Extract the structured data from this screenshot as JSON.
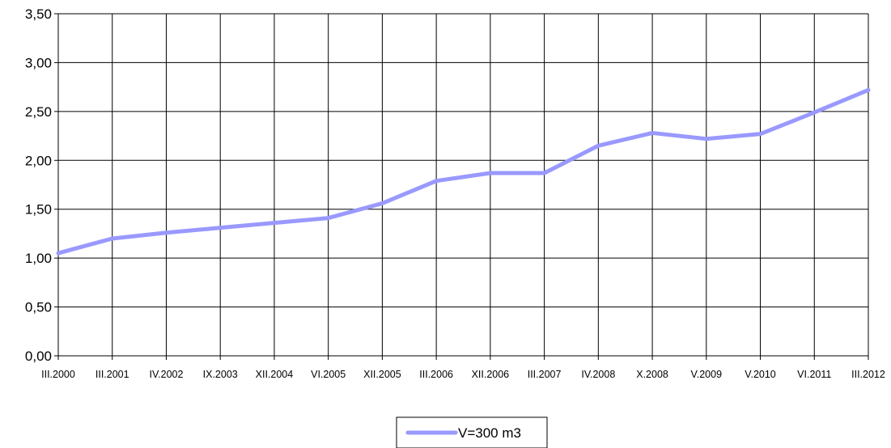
{
  "chart_data": {
    "type": "line",
    "title": "",
    "xlabel": "",
    "ylabel": "",
    "categories": [
      "III.2000",
      "III.2001",
      "IV.2002",
      "IX.2003",
      "XII.2004",
      "VI.2005",
      "XII.2005",
      "III.2006",
      "XII.2006",
      "III.2007",
      "IV.2008",
      "X.2008",
      "V.2009",
      "V.2010",
      "VI.2011",
      "III.2012"
    ],
    "y_ticks": [
      "0,00",
      "0,50",
      "1,00",
      "1,50",
      "2,00",
      "2,50",
      "3,00",
      "3,50"
    ],
    "ylim": [
      0,
      3.5
    ],
    "grid": true,
    "legend_position": "bottom",
    "series": [
      {
        "name": "V=300 m3",
        "color": "#9999ff",
        "values": [
          1.05,
          1.2,
          1.26,
          1.31,
          1.36,
          1.41,
          1.56,
          1.79,
          1.87,
          1.87,
          2.15,
          2.28,
          2.22,
          2.27,
          2.49,
          2.72
        ]
      }
    ]
  }
}
